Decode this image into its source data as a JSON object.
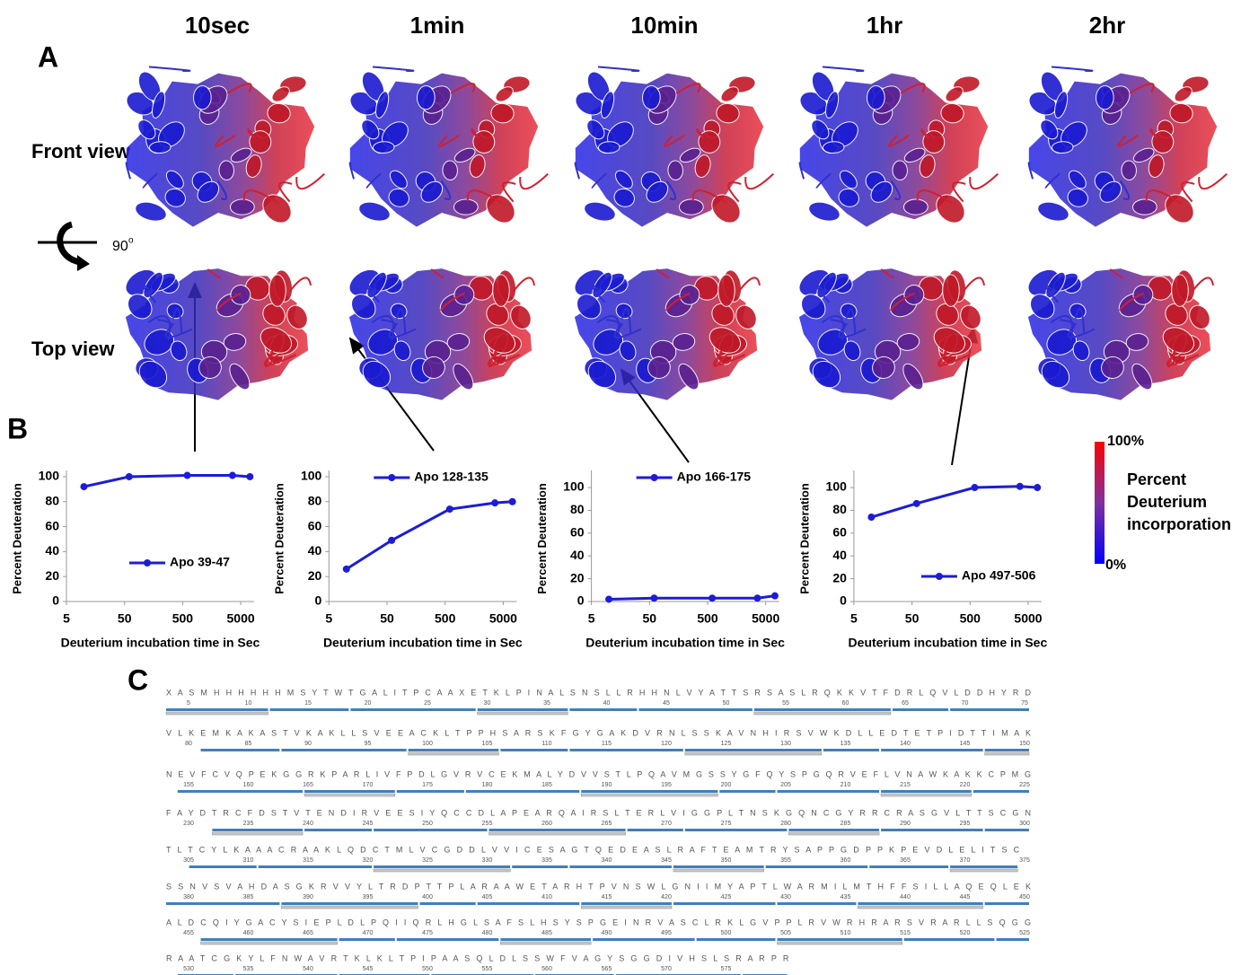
{
  "panels": {
    "a_label": "A",
    "b_label": "B",
    "c_label": "C",
    "time_titles": [
      "10sec",
      "1min",
      "10min",
      "1hr",
      "2hr"
    ],
    "front_view": "Front view",
    "top_view": "Top view",
    "rotation": {
      "value": "90",
      "unit": "o"
    },
    "colorbar": {
      "max": "100%",
      "min": "0%",
      "label_lines": [
        "Percent",
        "Deuterium",
        "incorporation"
      ]
    }
  },
  "chart_data": [
    {
      "type": "line",
      "xlabel": "Deuterium incubation time in Sec",
      "ylabel": "Percent Deuteration",
      "x": [
        10,
        60,
        600,
        3600,
        7200
      ],
      "xscale": "log",
      "xlim": [
        5,
        8500
      ],
      "xticks": [
        5,
        50,
        500,
        5000
      ],
      "ylim": [
        0,
        105
      ],
      "yticks": [
        0,
        20,
        40,
        60,
        80,
        100
      ],
      "legend": "lower center",
      "series": [
        {
          "name": "Apo 39-47",
          "color": "#1c1cd8",
          "values": [
            92,
            100,
            101,
            101,
            100
          ]
        }
      ]
    },
    {
      "type": "line",
      "xlabel": "Deuterium incubation time in Sec",
      "ylabel": "Percent Deuteration",
      "x": [
        10,
        60,
        600,
        3600,
        7200
      ],
      "xscale": "log",
      "xlim": [
        5,
        8500
      ],
      "xticks": [
        5,
        50,
        500,
        5000
      ],
      "ylim": [
        0,
        105
      ],
      "yticks": [
        0,
        20,
        40,
        60,
        80,
        100
      ],
      "legend": "upper center",
      "series": [
        {
          "name": "Apo 128-135",
          "color": "#1c1cd8",
          "values": [
            26,
            49,
            74,
            79,
            80
          ]
        }
      ]
    },
    {
      "type": "line",
      "xlabel": "Deuterium incubation time in Sec",
      "ylabel": "Percent Deuteration",
      "x": [
        10,
        60,
        600,
        3600,
        7200
      ],
      "xscale": "log",
      "xlim": [
        5,
        8500
      ],
      "xticks": [
        5,
        50,
        500,
        5000
      ],
      "ylim": [
        0,
        115
      ],
      "yticks": [
        0,
        20,
        40,
        60,
        80,
        100
      ],
      "legend": "upper center",
      "series": [
        {
          "name": "Apo 166-175",
          "color": "#1c1cd8",
          "values": [
            2,
            3,
            3,
            3,
            5
          ]
        }
      ]
    },
    {
      "type": "line",
      "xlabel": "Deuterium incubation time in Sec",
      "ylabel": "Percent Deuteration",
      "x": [
        10,
        60,
        600,
        3600,
        7200
      ],
      "xscale": "log",
      "xlim": [
        5,
        8500
      ],
      "xticks": [
        5,
        50,
        500,
        5000
      ],
      "ylim": [
        0,
        115
      ],
      "yticks": [
        0,
        20,
        40,
        60,
        80,
        100
      ],
      "legend": "lower right",
      "series": [
        {
          "name": "Apo 497-506",
          "color": "#1c1cd8",
          "values": [
            74,
            86,
            100,
            101,
            100
          ]
        }
      ]
    }
  ],
  "sequence": {
    "rows": [
      {
        "residues": "X A S M H H H H H H M S Y T W T G A L I T P C A A X E T K L P I N A L S N S L L R H H N L V Y A T T S R S A S L R Q K K V T F D R L Q V L D D H Y R D",
        "numbers": [
          5,
          10,
          15,
          20,
          25,
          30,
          35,
          40,
          45,
          50,
          55,
          60,
          65,
          70,
          75
        ]
      },
      {
        "residues": "V L K E M K A K A S T V K A K L L S V E E A C K L T P P H S A R S K F G Y G A K D V R N L S S K A V N H I R S V W K D L L E D T E T P I D T T I M A K",
        "numbers": [
          80,
          85,
          90,
          95,
          100,
          105,
          110,
          115,
          120,
          125,
          130,
          135,
          140,
          145,
          150
        ]
      },
      {
        "residues": "N E V F C V Q P E K G G R K P A R L I V F P D L G V R V C E K M A L Y D V V S T L P Q A V M G S S Y G F Q Y S P G Q R V E F L V N A W K A K K C P M G",
        "numbers": [
          155,
          160,
          165,
          170,
          175,
          180,
          185,
          190,
          195,
          200,
          205,
          210,
          215,
          220,
          225
        ]
      },
      {
        "residues": "F A Y D T R C F D S T V T E N D I R V E E S I Y Q C C D L A P E A R Q A I R S L T E R L V I G G P L T N S K G Q N C G Y R R C R A S G V L T T S C G N",
        "numbers": [
          230,
          235,
          240,
          245,
          250,
          255,
          260,
          265,
          270,
          275,
          280,
          285,
          290,
          295,
          300
        ]
      },
      {
        "residues": "T L T C Y L K A A A C R A A K L Q D C T M L V C G D D L V V I C E S A G T Q E D E A S L R A F T E A M T R Y S A P P G D P P K P E V D L E L I T S C",
        "numbers": [
          305,
          310,
          315,
          320,
          325,
          330,
          335,
          340,
          345,
          350,
          355,
          360,
          365,
          370,
          375
        ]
      },
      {
        "residues": "S S N V S V A H D A S G K R V V Y L T R D P T T P L A R A A W E T A R H T P V N S W L G N I I M Y A P T L W A R M I L M T H F F S I L L A Q E Q L E K",
        "numbers": [
          380,
          385,
          390,
          395,
          400,
          405,
          410,
          415,
          420,
          425,
          430,
          435,
          440,
          445,
          450
        ]
      },
      {
        "residues": "A L D C Q I Y G A C Y S I E P L D L P Q I I Q R L H G L S A F S L H S Y S P G E I N R V A S C L R K L G V P P L R V W R H R A R S V R A R L L S Q G G",
        "numbers": [
          455,
          460,
          465,
          470,
          475,
          480,
          485,
          490,
          495,
          500,
          505,
          510,
          515,
          520,
          525
        ]
      },
      {
        "residues": "R A A T C G K Y L F N W A V R T K L K L T P I P A A S Q L D L S S W F V A G Y S G G D I V H S L S R A R P R",
        "numbers": [
          530,
          535,
          540,
          545,
          550,
          555,
          560,
          565,
          570,
          575
        ]
      }
    ]
  }
}
